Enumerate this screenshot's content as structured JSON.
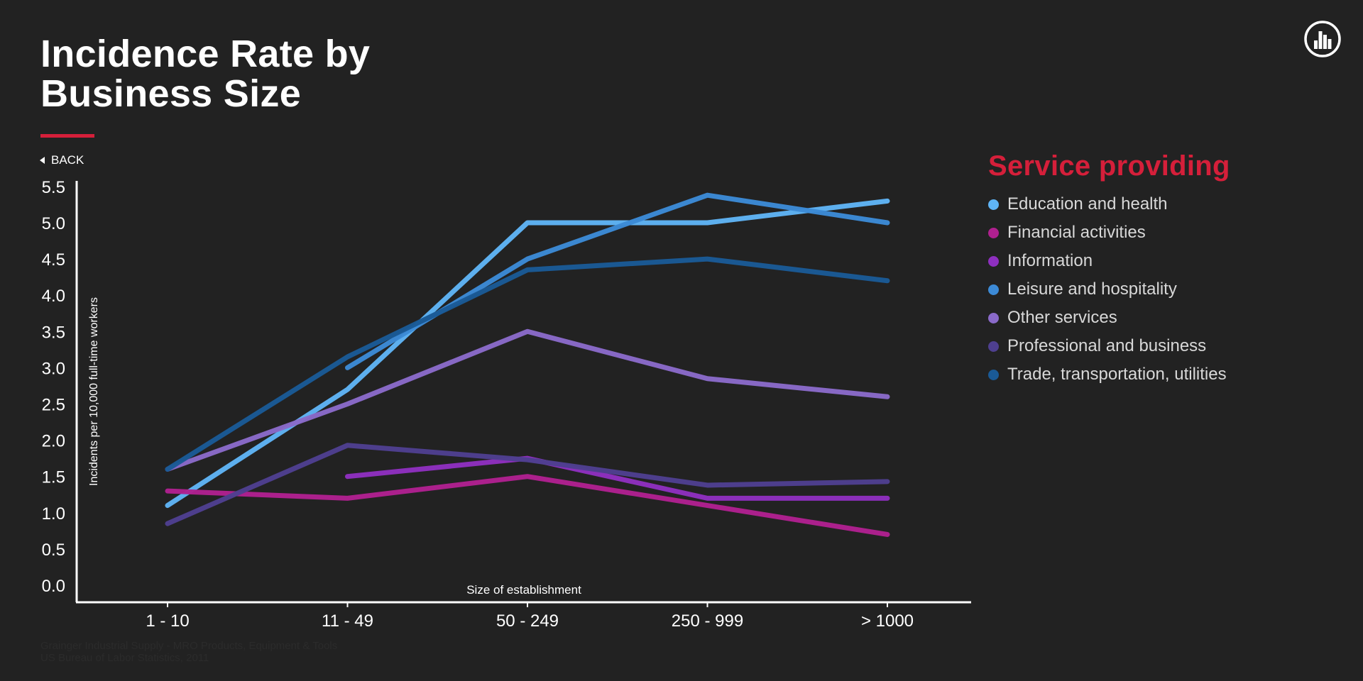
{
  "title_line1": "Incidence Rate by",
  "title_line2": "Business Size",
  "back_label": "BACK",
  "logo_icon": "building-logo-icon",
  "footer": {
    "line1": "Grainger Industrial Supply - MRO Products, Equipment & Tools",
    "line2": "US Bureau of Labor Statistics, 2011"
  },
  "colors": {
    "background": "#222222",
    "accent": "#d51f3a",
    "axis": "#ffffff"
  },
  "chart_data": {
    "type": "line",
    "xlabel": "Size of establishment",
    "ylabel": "Incidents per 10,000 full-time workers",
    "categories": [
      "1 - 10",
      "11 - 49",
      "50 - 249",
      "250 - 999",
      "> 1000"
    ],
    "yticks": [
      "0.0",
      "0.5",
      "1.0",
      "1.5",
      "2.0",
      "2.5",
      "3.0",
      "3.5",
      "4.0",
      "4.5",
      "5.0",
      "5.5"
    ],
    "ylim": [
      0,
      5.5
    ],
    "grid": false,
    "legend_title": "Service providing",
    "legend_position": "right",
    "series": [
      {
        "name": "Education and health",
        "color": "#5fb4f5",
        "values": [
          1.1,
          2.7,
          5.0,
          5.0,
          5.3
        ]
      },
      {
        "name": "Financial activities",
        "color": "#b0208f",
        "values": [
          1.3,
          1.2,
          1.5,
          1.1,
          0.7
        ]
      },
      {
        "name": "Information",
        "color": "#8e2fbf",
        "values": [
          null,
          1.5,
          1.75,
          1.2,
          1.2
        ]
      },
      {
        "name": "Leisure and hospitality",
        "color": "#3c8ad6",
        "values": [
          null,
          3.0,
          4.5,
          5.38,
          5.0
        ]
      },
      {
        "name": "Other services",
        "color": "#8a6ac9",
        "values": [
          1.6,
          2.5,
          3.5,
          2.85,
          2.6
        ]
      },
      {
        "name": "Professional and business",
        "color": "#4e3f8f",
        "values": [
          0.85,
          1.93,
          1.73,
          1.38,
          1.43
        ]
      },
      {
        "name": "Trade, transportation, utilities",
        "color": "#1a5a96",
        "values": [
          1.6,
          3.15,
          4.35,
          4.5,
          4.2
        ]
      }
    ]
  }
}
